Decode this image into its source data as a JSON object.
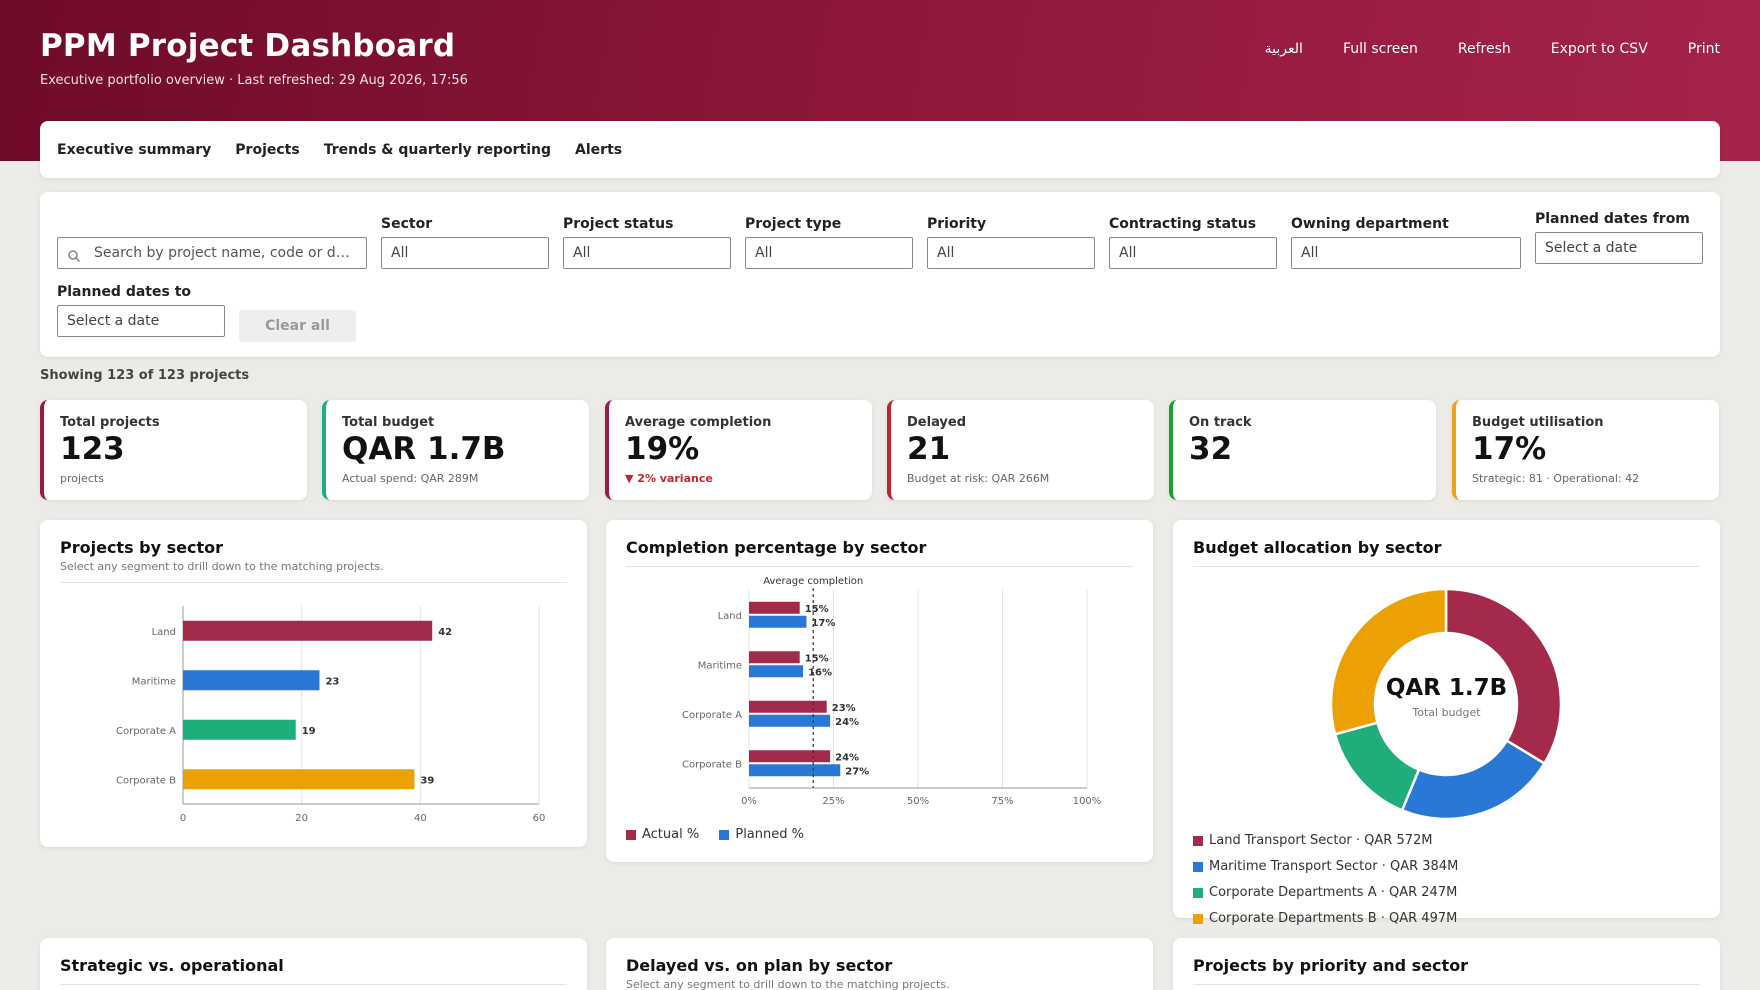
{
  "header": {
    "title": "PPM Project Dashboard",
    "subtitle": "Executive portfolio overview · Last refreshed: 29 Aug 2026, 17:56",
    "actions": [
      "العربية",
      "Full screen",
      "Refresh",
      "Export to CSV",
      "Print"
    ]
  },
  "tabs": [
    "Executive summary",
    "Projects",
    "Trends & quarterly reporting",
    "Alerts"
  ],
  "filters": {
    "search_placeholder": "Search by project name, code or department",
    "sector": {
      "label": "Sector",
      "value": "All"
    },
    "project_status": {
      "label": "Project status",
      "value": "All"
    },
    "project_type": {
      "label": "Project type",
      "value": "All"
    },
    "priority": {
      "label": "Priority",
      "value": "All"
    },
    "contracting_status": {
      "label": "Contracting status",
      "value": "All"
    },
    "owning_department": {
      "label": "Owning department",
      "value": "All"
    },
    "planned_from": {
      "label": "Planned dates from",
      "placeholder": "Select a date"
    },
    "planned_to": {
      "label": "Planned dates to",
      "placeholder": "Select a date"
    },
    "clear_label": "Clear all"
  },
  "showing": "Showing 123 of 123 projects",
  "kpis": [
    {
      "label": "Total projects",
      "value": "123",
      "note": "projects",
      "color": "#9b1b42"
    },
    {
      "label": "Total budget",
      "value": "QAR 1.7B",
      "note": "Actual spend: QAR 289M",
      "color": "#1fae7a"
    },
    {
      "label": "Average completion",
      "value": "19%",
      "note": "▼ 2% variance",
      "color": "#9b1b42"
    },
    {
      "label": "Delayed",
      "value": "21",
      "note": "Budget at risk: QAR 266M",
      "color": "#c0242f"
    },
    {
      "label": "On track",
      "value": "32",
      "note": "",
      "color": "#1a9f2e"
    },
    {
      "label": "Budget utilisation",
      "value": "17%",
      "note": "Strategic: 81 · Operational: 42",
      "color": "#e8a21c"
    }
  ],
  "cards": {
    "by_sector": {
      "title": "Projects by sector",
      "sub": "Select any segment to drill down to the matching projects."
    },
    "completion": {
      "title": "Completion percentage by sector",
      "avg_label": "Average completion",
      "legend": [
        "Actual %",
        "Planned %"
      ]
    },
    "budget": {
      "title": "Budget allocation by sector",
      "center_value": "QAR 1.7B",
      "center_label": "Total budget",
      "legend": [
        "Land Transport Sector · QAR 572M",
        "Maritime Transport Sector · QAR 384M",
        "Corporate Departments A · QAR 247M",
        "Corporate Departments B · QAR 497M"
      ]
    },
    "strategic": {
      "title": "Strategic vs. operational"
    },
    "delayed": {
      "title": "Delayed vs. on plan by sector",
      "sub": "Select any segment to drill down to the matching projects."
    },
    "priority": {
      "title": "Projects by priority and sector"
    }
  },
  "colors": {
    "crimson": "#a42a4c",
    "blue": "#2a78d6",
    "green": "#1fae7a",
    "amber": "#eba104"
  },
  "chart_data": [
    {
      "type": "bar",
      "orientation": "horizontal",
      "categories": [
        "Land",
        "Maritime",
        "Corporate A",
        "Corporate B"
      ],
      "values": [
        42,
        23,
        19,
        39
      ],
      "xlim": [
        0,
        60
      ],
      "xticks": [
        0,
        20,
        40,
        60
      ]
    },
    {
      "type": "bar",
      "orientation": "horizontal",
      "categories": [
        "Land",
        "Maritime",
        "Corporate A",
        "Corporate B"
      ],
      "series": [
        {
          "name": "Actual %",
          "values": [
            15,
            15,
            23,
            24
          ]
        },
        {
          "name": "Planned %",
          "values": [
            17,
            16,
            24,
            27
          ]
        }
      ],
      "average": 19,
      "xlim": [
        0,
        100
      ],
      "xticks": [
        "0%",
        "25%",
        "50%",
        "75%",
        "100%"
      ]
    },
    {
      "type": "pie",
      "categories": [
        "Land Transport Sector",
        "Maritime Transport Sector",
        "Corporate Departments A",
        "Corporate Departments B"
      ],
      "values": [
        572,
        384,
        247,
        497
      ],
      "unit": "QAR M"
    }
  ]
}
